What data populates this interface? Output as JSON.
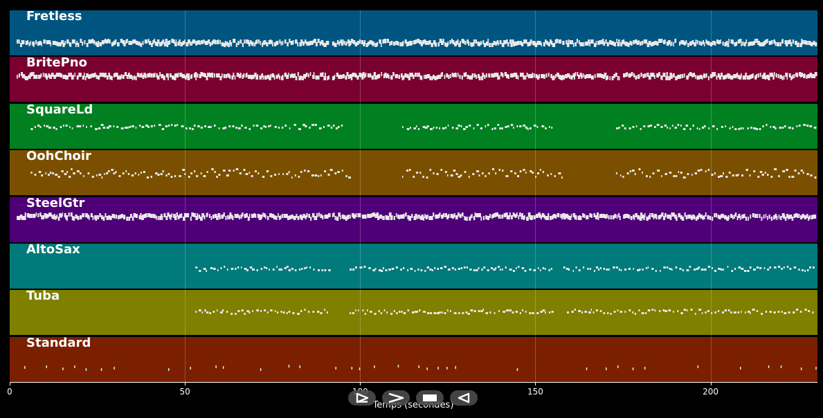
{
  "app": {
    "xlabel": "Temps (secondes)",
    "x_ticks": [
      0,
      50,
      100,
      150,
      200
    ],
    "x_max": 230.5
  },
  "tracks": [
    {
      "name": "Fretless",
      "color": "#005580",
      "pattern": "dense-low"
    },
    {
      "name": "BritePno",
      "color": "#7a0030",
      "pattern": "dense-mid"
    },
    {
      "name": "SquareLd",
      "color": "#008020",
      "pattern": "sparse-phrases"
    },
    {
      "name": "OohChoir",
      "color": "#7a5000",
      "pattern": "chords"
    },
    {
      "name": "SteelGtr",
      "color": "#4f0078",
      "pattern": "dense-mid"
    },
    {
      "name": "AltoSax",
      "color": "#007a7a",
      "pattern": "late-phrases"
    },
    {
      "name": "Tuba",
      "color": "#7f7f00",
      "pattern": "late-bass"
    },
    {
      "name": "Standard",
      "color": "#7a2000",
      "pattern": "drums"
    }
  ],
  "controls": [
    {
      "name": "play-forward-button",
      "icon": "play-outline-icon"
    },
    {
      "name": "fast-forward-button",
      "icon": "chevron-right-icon"
    },
    {
      "name": "stop-button",
      "icon": "stop-icon"
    },
    {
      "name": "play-backward-button",
      "icon": "play-reverse-icon"
    }
  ]
}
